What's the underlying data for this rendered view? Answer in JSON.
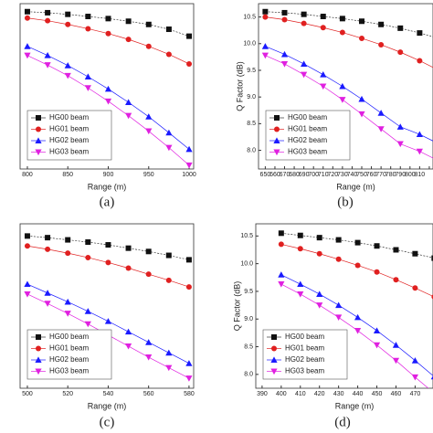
{
  "chart_data": [
    {
      "type": "line",
      "caption": "(a)",
      "xlabel": "Range (m)",
      "x": [
        800,
        825,
        850,
        875,
        900,
        925,
        950,
        975,
        1000
      ],
      "xlim": [
        791,
        1005.6
      ],
      "xticks": [
        800,
        850,
        900,
        950,
        1000
      ],
      "ylim": [
        7.65,
        10.75
      ],
      "legend": "lower left",
      "series": [
        {
          "name": "HG00 beam",
          "color": "#111111",
          "marker": "square",
          "values": [
            10.6,
            10.58,
            10.55,
            10.51,
            10.47,
            10.42,
            10.36,
            10.27,
            10.14
          ]
        },
        {
          "name": "HG01 beam",
          "color": "#e02020",
          "marker": "circle",
          "values": [
            10.48,
            10.43,
            10.36,
            10.28,
            10.19,
            10.08,
            9.95,
            9.8,
            9.62
          ]
        },
        {
          "name": "HG02 beam",
          "color": "#1a1aff",
          "marker": "triangle-up",
          "values": [
            9.95,
            9.78,
            9.59,
            9.38,
            9.15,
            8.9,
            8.63,
            8.33,
            8.02
          ]
        },
        {
          "name": "HG03 beam",
          "color": "#e020e0",
          "marker": "triangle-down",
          "values": [
            9.78,
            9.6,
            9.4,
            9.17,
            8.92,
            8.65,
            8.36,
            8.05,
            7.72
          ]
        }
      ]
    },
    {
      "type": "line",
      "caption": "(b)",
      "xlabel": "Range (m)",
      "ylabel": "Q Factor (dB)",
      "x": [
        650,
        670,
        690,
        710,
        730,
        750,
        770,
        790,
        810,
        830
      ],
      "xlim": [
        643,
        839
      ],
      "xticks": [
        650,
        660,
        670,
        680,
        690,
        700,
        710,
        720,
        730,
        740,
        750,
        760,
        770,
        780,
        790,
        800,
        810,
        820
      ],
      "ylim": [
        7.65,
        10.75
      ],
      "yticks": [
        {
          "value": 8,
          "label": "8.0"
        },
        8.5,
        {
          "value": 9,
          "label": "9.0"
        },
        9.5,
        {
          "value": 10,
          "label": "10.0"
        },
        10.5
      ],
      "legend": "lower left",
      "series": [
        {
          "name": "HG00 beam",
          "color": "#111111",
          "marker": "square",
          "values": [
            10.6,
            10.58,
            10.55,
            10.51,
            10.47,
            10.42,
            10.36,
            10.29,
            10.2,
            10.1
          ]
        },
        {
          "name": "HG01 beam",
          "color": "#e02020",
          "marker": "circle",
          "values": [
            10.5,
            10.45,
            10.38,
            10.3,
            10.21,
            10.1,
            9.98,
            9.84,
            9.68,
            9.5
          ]
        },
        {
          "name": "HG02 beam",
          "color": "#1a1aff",
          "marker": "triangle-up",
          "values": [
            9.95,
            9.8,
            9.62,
            9.42,
            9.2,
            8.96,
            8.7,
            8.44,
            8.3,
            8.12
          ]
        },
        {
          "name": "HG03 beam",
          "color": "#e020e0",
          "marker": "triangle-down",
          "values": [
            9.78,
            9.62,
            9.42,
            9.2,
            8.95,
            8.68,
            8.4,
            8.12,
            7.98,
            7.8
          ]
        }
      ]
    },
    {
      "type": "line",
      "caption": "(c)",
      "xlabel": "Range (m)",
      "x": [
        500,
        510,
        520,
        530,
        540,
        550,
        560,
        570,
        580
      ],
      "xlim": [
        496.4,
        582.3
      ],
      "xticks": [
        500,
        520,
        540,
        560,
        580
      ],
      "ylim": [
        7.75,
        10.72
      ],
      "legend": "lower left",
      "series": [
        {
          "name": "HG00 beam",
          "color": "#111111",
          "marker": "square",
          "values": [
            10.5,
            10.47,
            10.43,
            10.39,
            10.34,
            10.28,
            10.22,
            10.15,
            10.07
          ]
        },
        {
          "name": "HG01 beam",
          "color": "#e02020",
          "marker": "circle",
          "values": [
            10.32,
            10.26,
            10.19,
            10.11,
            10.02,
            9.92,
            9.81,
            9.7,
            9.58
          ]
        },
        {
          "name": "HG02 beam",
          "color": "#1a1aff",
          "marker": "triangle-up",
          "values": [
            9.63,
            9.47,
            9.31,
            9.14,
            8.96,
            8.77,
            8.58,
            8.39,
            8.2
          ]
        },
        {
          "name": "HG03 beam",
          "color": "#e020e0",
          "marker": "triangle-down",
          "values": [
            9.45,
            9.28,
            9.1,
            8.91,
            8.71,
            8.51,
            8.31,
            8.12,
            7.93
          ]
        }
      ]
    },
    {
      "type": "line",
      "caption": "(d)",
      "xlabel": "Range (m)",
      "ylabel": "Q Factor (dB)",
      "x": [
        400,
        410,
        420,
        430,
        440,
        450,
        460,
        470,
        480
      ],
      "xlim": [
        386.7,
        487
      ],
      "xticks": [
        390,
        400,
        410,
        420,
        430,
        440,
        450,
        460,
        470
      ],
      "ylim": [
        7.75,
        10.72
      ],
      "yticks": [
        {
          "value": 8,
          "label": "8.0"
        },
        8.5,
        {
          "value": 9,
          "label": "9.0"
        },
        9.5,
        {
          "value": 10,
          "label": "10.0"
        },
        10.5
      ],
      "legend": "lower left",
      "series": [
        {
          "name": "HG00 beam",
          "color": "#111111",
          "marker": "square",
          "values": [
            10.55,
            10.51,
            10.47,
            10.43,
            10.38,
            10.32,
            10.25,
            10.18,
            10.1
          ]
        },
        {
          "name": "HG01 beam",
          "color": "#e02020",
          "marker": "circle",
          "values": [
            10.35,
            10.27,
            10.18,
            10.08,
            9.97,
            9.85,
            9.71,
            9.56,
            9.4
          ]
        },
        {
          "name": "HG02 beam",
          "color": "#1a1aff",
          "marker": "triangle-up",
          "values": [
            9.8,
            9.63,
            9.45,
            9.25,
            9.03,
            8.79,
            8.53,
            8.25,
            7.96
          ]
        },
        {
          "name": "HG03 beam",
          "color": "#e020e0",
          "marker": "triangle-down",
          "values": [
            9.63,
            9.45,
            9.25,
            9.03,
            8.79,
            8.53,
            8.25,
            7.95,
            7.66
          ]
        }
      ]
    }
  ]
}
